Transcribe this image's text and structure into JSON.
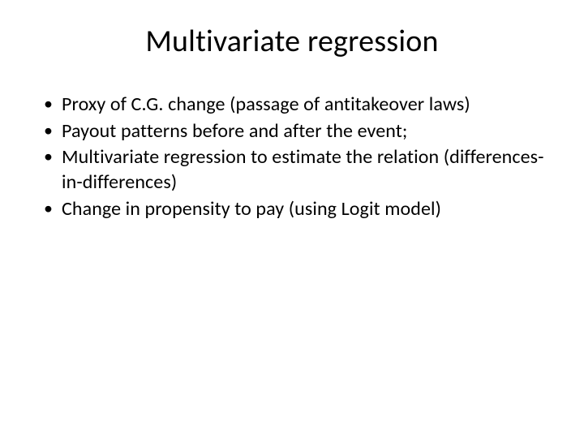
{
  "slide": {
    "title": "Multivariate regression",
    "bullets": [
      "Proxy of C.G. change (passage of antitakeover laws)",
      "Payout patterns before and after the event;",
      "Multivariate regression to estimate the relation (differences-in-differences)",
      "Change in propensity to pay (using Logit model)"
    ],
    "background_color": "#ffffff",
    "text_color": "#000000",
    "title_fontsize": 38,
    "body_fontsize": 24
  }
}
